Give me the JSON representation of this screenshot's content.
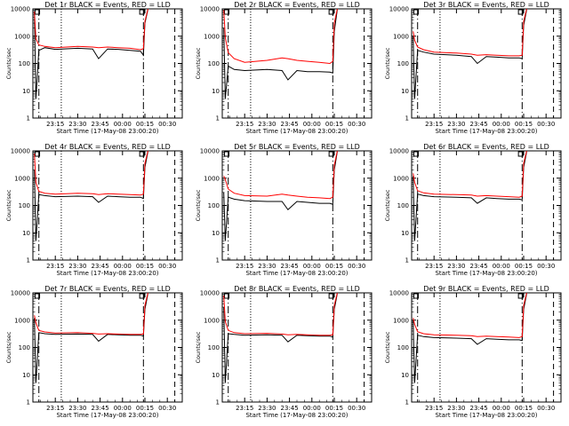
{
  "figure": {
    "time_reference": "17-May-08 23:00:20",
    "xlabel": "Start Time (17-May-08 23:00:20)",
    "ylabel": "Counts/sec",
    "y_scale": "log",
    "x_tick_labels": [
      "23:15",
      "23:30",
      "23:45",
      "00:00",
      "00:15",
      "00:30"
    ],
    "y_tick_labels": [
      "1",
      "10",
      "100",
      "1000",
      "10000"
    ],
    "colors": {
      "events": "#000000",
      "lld": "#ff0000",
      "axes": "#000000",
      "background": "#ffffff"
    },
    "legend_note": "BLACK = Events, RED = LLD"
  },
  "chart_data": [
    {
      "type": "line",
      "title": "Det 1r BLACK = Events, RED = LLD",
      "xlabel": "Start Time (17-May-08 23:00:20)",
      "ylabel": "Counts/sec",
      "ylim": [
        1,
        10000
      ],
      "yscale": "log",
      "xticks": [
        "23:15",
        "23:30",
        "23:45",
        "00:00",
        "00:15",
        "00:30"
      ],
      "series": [
        {
          "name": "Events",
          "color": "#000000",
          "x": [
            "23:01",
            "23:02",
            "23:04",
            "23:08",
            "23:15",
            "23:30",
            "23:40",
            "23:44",
            "23:50",
            "23:57",
            "00:05",
            "00:12",
            "00:14",
            "00:15",
            "00:17"
          ],
          "y": [
            8000,
            5,
            300,
            380,
            330,
            360,
            340,
            150,
            340,
            330,
            300,
            280,
            200,
            3000,
            9500
          ]
        },
        {
          "name": "LLD",
          "color": "#ff0000",
          "x": [
            "23:01",
            "23:02",
            "23:04",
            "23:08",
            "23:15",
            "23:30",
            "23:40",
            "23:44",
            "23:50",
            "23:57",
            "00:05",
            "00:12",
            "00:14",
            "00:15",
            "00:17"
          ],
          "y": [
            8000,
            800,
            480,
            420,
            380,
            420,
            400,
            380,
            400,
            380,
            360,
            320,
            350,
            3500,
            10000
          ]
        }
      ]
    },
    {
      "type": "line",
      "title": "Det 2r BLACK = Events, RED = LLD",
      "xlabel": "Start Time (17-May-08 23:00:20)",
      "ylabel": "Counts/sec",
      "ylim": [
        1,
        10000
      ],
      "yscale": "log",
      "xticks": [
        "23:15",
        "23:30",
        "23:45",
        "00:00",
        "00:15",
        "00:30"
      ],
      "series": [
        {
          "name": "Events",
          "color": "#000000",
          "x": [
            "23:01",
            "23:02",
            "23:04",
            "23:08",
            "23:15",
            "23:30",
            "23:40",
            "23:44",
            "23:50",
            "23:57",
            "00:05",
            "00:12",
            "00:14",
            "00:15",
            "00:17"
          ],
          "y": [
            2000,
            5,
            80,
            60,
            55,
            60,
            55,
            25,
            55,
            50,
            50,
            48,
            45,
            1500,
            9500
          ]
        },
        {
          "name": "LLD",
          "color": "#ff0000",
          "x": [
            "23:01",
            "23:02",
            "23:04",
            "23:08",
            "23:15",
            "23:30",
            "23:40",
            "23:44",
            "23:50",
            "23:57",
            "00:05",
            "00:12",
            "00:14",
            "00:15",
            "00:17"
          ],
          "y": [
            9000,
            900,
            250,
            150,
            110,
            130,
            160,
            150,
            130,
            120,
            110,
            100,
            120,
            3000,
            10000
          ]
        }
      ]
    },
    {
      "type": "line",
      "title": "Det 3r BLACK = Events, RED = LLD",
      "xlabel": "Start Time (17-May-08 23:00:20)",
      "ylabel": "Counts/sec",
      "ylim": [
        1,
        10000
      ],
      "yscale": "log",
      "xticks": [
        "23:15",
        "23:30",
        "23:45",
        "00:00",
        "00:15",
        "00:30"
      ],
      "series": [
        {
          "name": "Events",
          "color": "#000000",
          "x": [
            "23:01",
            "23:02",
            "23:04",
            "23:08",
            "23:15",
            "23:30",
            "23:40",
            "23:44",
            "23:50",
            "23:57",
            "00:05",
            "00:12",
            "00:14",
            "00:15",
            "00:17"
          ],
          "y": [
            1000,
            5,
            300,
            260,
            220,
            200,
            180,
            100,
            180,
            170,
            160,
            160,
            150,
            2500,
            9500
          ]
        },
        {
          "name": "LLD",
          "color": "#ff0000",
          "x": [
            "23:01",
            "23:02",
            "23:04",
            "23:08",
            "23:15",
            "23:30",
            "23:40",
            "23:44",
            "23:50",
            "23:57",
            "00:05",
            "00:12",
            "00:14",
            "00:15",
            "00:17"
          ],
          "y": [
            1500,
            700,
            400,
            320,
            260,
            240,
            220,
            200,
            210,
            200,
            190,
            190,
            200,
            3500,
            10000
          ]
        }
      ]
    },
    {
      "type": "line",
      "title": "Det 4r BLACK = Events, RED = LLD",
      "xlabel": "Start Time (17-May-08 23:00:20)",
      "ylabel": "Counts/sec",
      "ylim": [
        1,
        10000
      ],
      "yscale": "log",
      "xticks": [
        "23:15",
        "23:30",
        "23:45",
        "00:00",
        "00:15",
        "00:30"
      ],
      "series": [
        {
          "name": "Events",
          "color": "#000000",
          "x": [
            "23:01",
            "23:02",
            "23:04",
            "23:08",
            "23:15",
            "23:30",
            "23:40",
            "23:44",
            "23:50",
            "23:57",
            "00:05",
            "00:12",
            "00:14",
            "00:15",
            "00:17"
          ],
          "y": [
            2000,
            5,
            250,
            230,
            210,
            220,
            210,
            130,
            220,
            210,
            200,
            200,
            180,
            2500,
            9500
          ]
        },
        {
          "name": "LLD",
          "color": "#ff0000",
          "x": [
            "23:01",
            "23:02",
            "23:04",
            "23:08",
            "23:15",
            "23:30",
            "23:40",
            "23:44",
            "23:50",
            "23:57",
            "00:05",
            "00:12",
            "00:14",
            "00:15",
            "00:17"
          ],
          "y": [
            8000,
            700,
            330,
            280,
            260,
            280,
            270,
            250,
            270,
            260,
            250,
            240,
            260,
            3500,
            10000
          ]
        }
      ]
    },
    {
      "type": "line",
      "title": "Det 5r BLACK = Events, RED = LLD",
      "xlabel": "Start Time (17-May-08 23:00:20)",
      "ylabel": "Counts/sec",
      "ylim": [
        1,
        10000
      ],
      "yscale": "log",
      "xticks": [
        "23:15",
        "23:30",
        "23:45",
        "00:00",
        "00:15",
        "00:30"
      ],
      "series": [
        {
          "name": "Events",
          "color": "#000000",
          "x": [
            "23:01",
            "23:02",
            "23:04",
            "23:08",
            "23:15",
            "23:30",
            "23:40",
            "23:44",
            "23:50",
            "23:57",
            "00:05",
            "00:12",
            "00:14",
            "00:15",
            "00:17"
          ],
          "y": [
            300,
            5,
            200,
            170,
            150,
            140,
            140,
            70,
            140,
            130,
            120,
            120,
            110,
            2000,
            9500
          ]
        },
        {
          "name": "LLD",
          "color": "#ff0000",
          "x": [
            "23:01",
            "23:02",
            "23:04",
            "23:08",
            "23:15",
            "23:30",
            "23:40",
            "23:44",
            "23:50",
            "23:57",
            "00:05",
            "00:12",
            "00:14",
            "00:15",
            "00:17"
          ],
          "y": [
            1200,
            900,
            400,
            280,
            230,
            220,
            260,
            240,
            220,
            200,
            190,
            180,
            200,
            3000,
            10000
          ]
        }
      ]
    },
    {
      "type": "line",
      "title": "Det 6r BLACK = Events, RED = LLD",
      "xlabel": "Start Time (17-May-08 23:00:20)",
      "ylabel": "Counts/sec",
      "ylim": [
        1,
        10000
      ],
      "yscale": "log",
      "xticks": [
        "23:15",
        "23:30",
        "23:45",
        "00:00",
        "00:15",
        "00:30"
      ],
      "series": [
        {
          "name": "Events",
          "color": "#000000",
          "x": [
            "23:01",
            "23:02",
            "23:04",
            "23:08",
            "23:15",
            "23:30",
            "23:40",
            "23:44",
            "23:50",
            "23:57",
            "00:05",
            "00:12",
            "00:14",
            "00:15",
            "00:17"
          ],
          "y": [
            1200,
            5,
            260,
            230,
            210,
            200,
            190,
            120,
            190,
            180,
            170,
            170,
            160,
            2500,
            9500
          ]
        },
        {
          "name": "LLD",
          "color": "#ff0000",
          "x": [
            "23:01",
            "23:02",
            "23:04",
            "23:08",
            "23:15",
            "23:30",
            "23:40",
            "23:44",
            "23:50",
            "23:57",
            "00:05",
            "00:12",
            "00:14",
            "00:15",
            "00:17"
          ],
          "y": [
            1500,
            700,
            350,
            290,
            260,
            250,
            240,
            220,
            230,
            220,
            210,
            200,
            220,
            3500,
            10000
          ]
        }
      ]
    },
    {
      "type": "line",
      "title": "Det 7r BLACK = Events, RED = LLD",
      "xlabel": "Start Time (17-May-08 23:00:20)",
      "ylabel": "Counts/sec",
      "ylim": [
        1,
        10000
      ],
      "yscale": "log",
      "xticks": [
        "23:15",
        "23:30",
        "23:45",
        "00:00",
        "00:15",
        "00:30"
      ],
      "series": [
        {
          "name": "Events",
          "color": "#000000",
          "x": [
            "23:01",
            "23:02",
            "23:04",
            "23:08",
            "23:15",
            "23:30",
            "23:40",
            "23:44",
            "23:50",
            "23:57",
            "00:05",
            "00:12",
            "00:14",
            "00:15",
            "00:17"
          ],
          "y": [
            1200,
            5,
            350,
            320,
            300,
            310,
            300,
            170,
            300,
            290,
            280,
            280,
            260,
            2500,
            9500
          ]
        },
        {
          "name": "LLD",
          "color": "#ff0000",
          "x": [
            "23:01",
            "23:02",
            "23:04",
            "23:08",
            "23:15",
            "23:30",
            "23:40",
            "23:44",
            "23:50",
            "23:57",
            "00:05",
            "00:12",
            "00:14",
            "00:15",
            "00:17"
          ],
          "y": [
            1500,
            800,
            420,
            370,
            340,
            350,
            330,
            310,
            320,
            310,
            300,
            300,
            310,
            3500,
            10000
          ]
        }
      ]
    },
    {
      "type": "line",
      "title": "Det 8r BLACK = Events, RED = LLD",
      "xlabel": "Start Time (17-May-08 23:00:20)",
      "ylabel": "Counts/sec",
      "ylim": [
        1,
        10000
      ],
      "yscale": "log",
      "xticks": [
        "23:15",
        "23:30",
        "23:45",
        "00:00",
        "00:15",
        "00:30"
      ],
      "series": [
        {
          "name": "Events",
          "color": "#000000",
          "x": [
            "23:01",
            "23:02",
            "23:04",
            "23:08",
            "23:15",
            "23:30",
            "23:40",
            "23:44",
            "23:50",
            "23:57",
            "00:05",
            "00:12",
            "00:14",
            "00:15",
            "00:17"
          ],
          "y": [
            3000,
            5,
            320,
            300,
            280,
            290,
            280,
            160,
            280,
            270,
            260,
            260,
            240,
            2500,
            9500
          ]
        },
        {
          "name": "LLD",
          "color": "#ff0000",
          "x": [
            "23:01",
            "23:02",
            "23:04",
            "23:08",
            "23:15",
            "23:30",
            "23:40",
            "23:44",
            "23:50",
            "23:57",
            "00:05",
            "00:12",
            "00:14",
            "00:15",
            "00:17"
          ],
          "y": [
            8000,
            900,
            420,
            350,
            320,
            330,
            310,
            290,
            300,
            290,
            280,
            280,
            290,
            3500,
            10000
          ]
        }
      ]
    },
    {
      "type": "line",
      "title": "Det 9r BLACK = Events, RED = LLD",
      "xlabel": "Start Time (17-May-08 23:00:20)",
      "ylabel": "Counts/sec",
      "ylim": [
        1,
        10000
      ],
      "yscale": "log",
      "xticks": [
        "23:15",
        "23:30",
        "23:45",
        "00:00",
        "00:15",
        "00:30"
      ],
      "series": [
        {
          "name": "Events",
          "color": "#000000",
          "x": [
            "23:01",
            "23:02",
            "23:04",
            "23:08",
            "23:15",
            "23:30",
            "23:40",
            "23:44",
            "23:50",
            "23:57",
            "00:05",
            "00:12",
            "00:14",
            "00:15",
            "00:17"
          ],
          "y": [
            1000,
            5,
            280,
            250,
            230,
            220,
            210,
            130,
            210,
            200,
            190,
            190,
            180,
            2500,
            9500
          ]
        },
        {
          "name": "LLD",
          "color": "#ff0000",
          "x": [
            "23:01",
            "23:02",
            "23:04",
            "23:08",
            "23:15",
            "23:30",
            "23:40",
            "23:44",
            "23:50",
            "23:57",
            "00:05",
            "00:12",
            "00:14",
            "00:15",
            "00:17"
          ],
          "y": [
            1200,
            700,
            380,
            320,
            290,
            280,
            270,
            250,
            260,
            250,
            240,
            230,
            250,
            3500,
            10000
          ]
        }
      ]
    }
  ]
}
